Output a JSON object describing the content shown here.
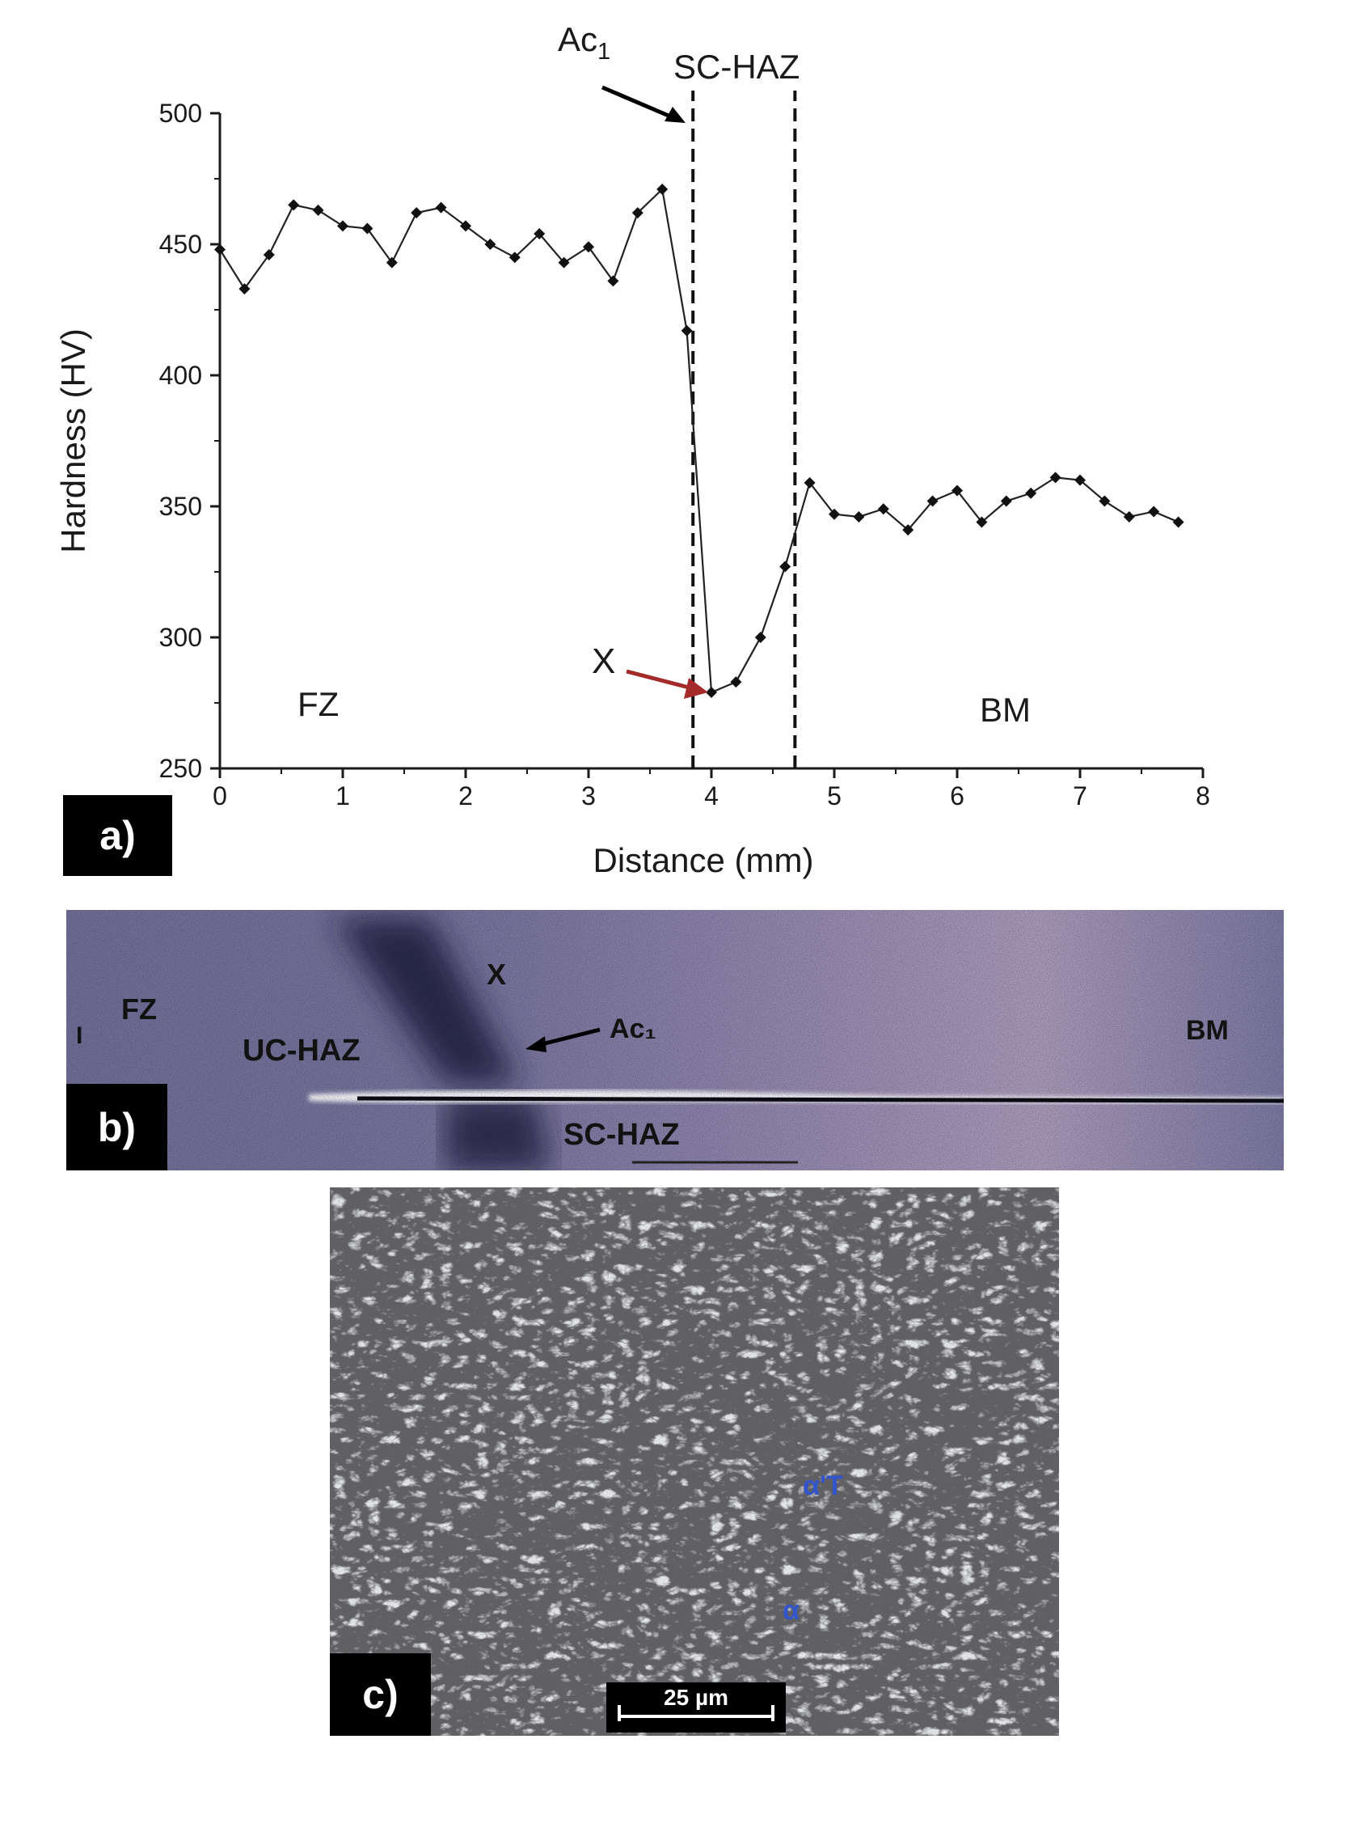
{
  "chart_data": {
    "type": "line",
    "xlabel": "Distance (mm)",
    "ylabel": "Hardness (HV)",
    "xlim": [
      0,
      8
    ],
    "ylim": [
      250,
      500
    ],
    "xticks": [
      0,
      1,
      2,
      3,
      4,
      5,
      6,
      7,
      8
    ],
    "yticks": [
      250,
      300,
      350,
      400,
      450,
      500
    ],
    "grid": false,
    "series": [
      {
        "x": [
          0,
          0.2,
          0.4,
          0.6,
          0.8,
          1.0,
          1.2,
          1.4,
          1.6,
          1.8,
          2.0,
          2.2,
          2.4,
          2.6,
          2.8,
          3.0,
          3.2,
          3.4,
          3.6,
          3.8,
          4.0,
          4.2,
          4.4,
          4.6,
          4.8,
          5.0,
          5.2,
          5.4,
          5.6,
          5.8,
          6.0,
          6.2,
          6.4,
          6.6,
          6.8,
          7.0,
          7.2,
          7.4,
          7.6,
          7.8
        ],
        "y": [
          448,
          433,
          446,
          465,
          463,
          457,
          456,
          443,
          462,
          464,
          457,
          450,
          445,
          454,
          443,
          449,
          436,
          462,
          471,
          417,
          279,
          283,
          300,
          327,
          359,
          347,
          346,
          349,
          341,
          352,
          356,
          344,
          352,
          355,
          361,
          360,
          352,
          346,
          348,
          344
        ]
      }
    ],
    "vlines": [
      3.85,
      4.68
    ],
    "annotations": {
      "ac1": "Ac",
      "ac1_sub": "1",
      "sc_haz": "SC-HAZ",
      "x_mark": "X",
      "fz": "FZ",
      "bm": "BM"
    }
  },
  "panels": {
    "a": "a)",
    "b": "b)",
    "c": "c)"
  },
  "micrograph_b": {
    "fz": "FZ",
    "uc_haz": "UC-HAZ",
    "x_mark": "X",
    "ac1": "Ac₁",
    "bm": "BM",
    "sc_haz": "SC-HAZ",
    "edge_mark": "I"
  },
  "micrograph_c": {
    "alpha_t": "α'T",
    "alpha": "α",
    "scale_bar": "25 µm"
  },
  "colors": {
    "axis": "#1a1a1a",
    "arrow_x": "#a52a2a",
    "micro_label_blue": "#3355cc"
  }
}
